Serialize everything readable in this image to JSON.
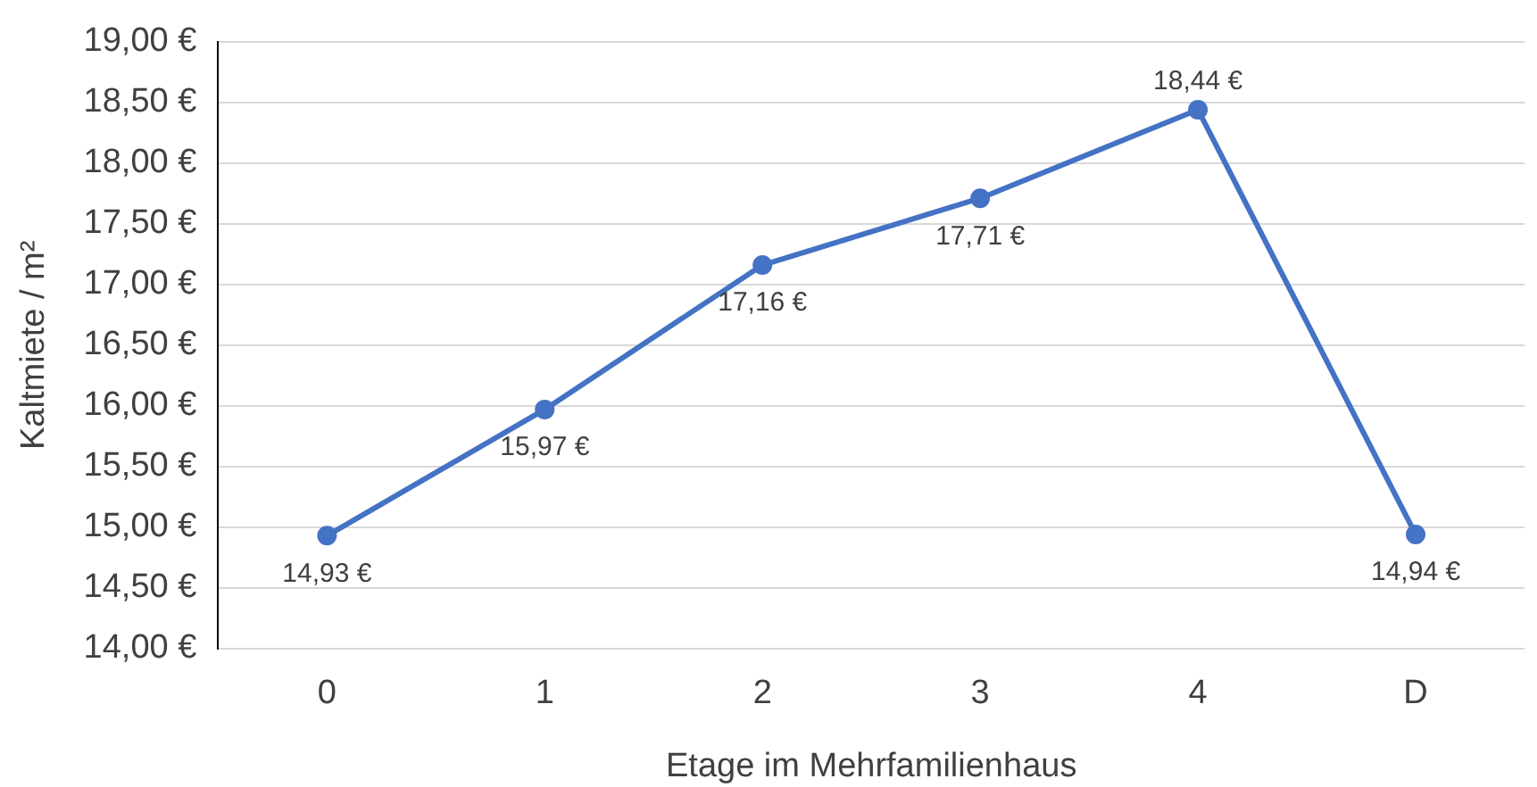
{
  "chart_data": {
    "type": "line",
    "xlabel": "Etage im Mehrfamilienhaus",
    "ylabel": "Kaltmiete / m²",
    "categories": [
      "0",
      "1",
      "2",
      "3",
      "4",
      "D"
    ],
    "series": [
      {
        "color": "#4472c4",
        "values": [
          14.93,
          15.97,
          17.16,
          17.71,
          18.44,
          14.94
        ],
        "value_labels": [
          "14,93 €",
          "15,97 €",
          "17,16 €",
          "17,71 €",
          "18,44 €",
          "14,94 €"
        ]
      }
    ],
    "ylim": [
      14,
      19
    ],
    "yticks": [
      {
        "value": 14,
        "label": "14,00 €"
      },
      {
        "value": 14.5,
        "label": "14,50 €"
      },
      {
        "value": 15,
        "label": "15,00 €"
      },
      {
        "value": 15.5,
        "label": "15,50 €"
      },
      {
        "value": 16,
        "label": "16,00 €"
      },
      {
        "value": 16.5,
        "label": "16,50 €"
      },
      {
        "value": 17,
        "label": "17,00 €"
      },
      {
        "value": 17.5,
        "label": "17,50 €"
      },
      {
        "value": 18,
        "label": "18,00 €"
      },
      {
        "value": 18.5,
        "label": "18,50 €"
      },
      {
        "value": 19,
        "label": "19,00 €"
      }
    ],
    "grid": "y",
    "legend": false,
    "marker": "circle",
    "line_style": "solid"
  }
}
